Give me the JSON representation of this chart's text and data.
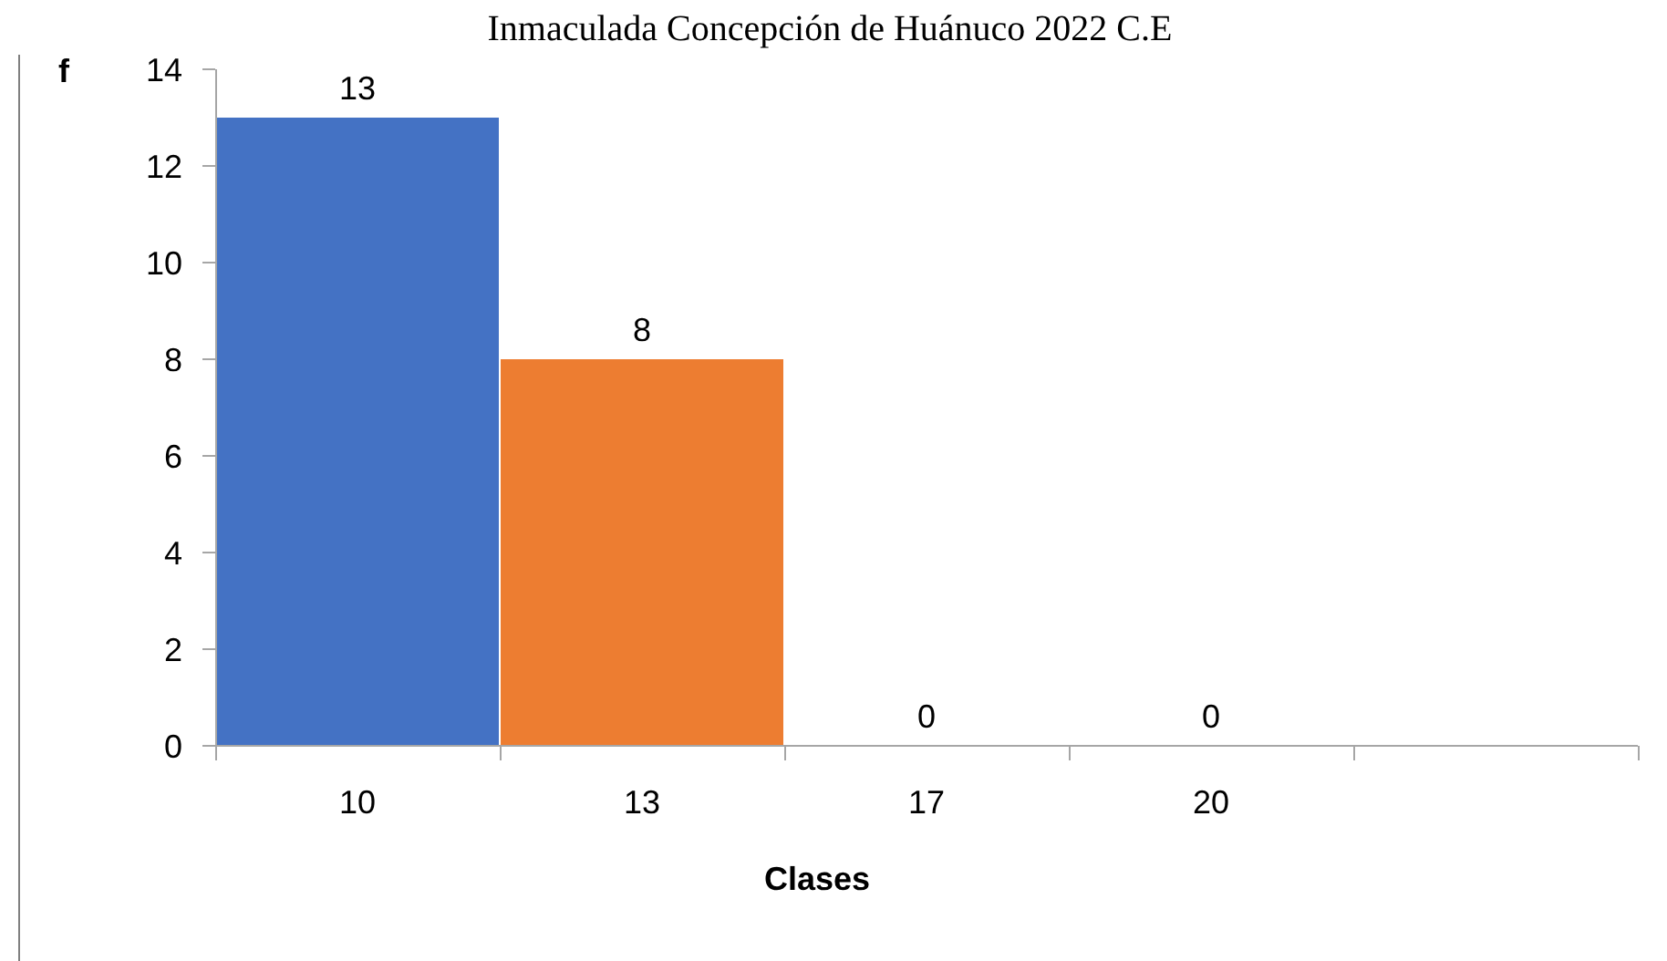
{
  "chart_data": {
    "type": "bar",
    "title": "Inmaculada Concepción de Huánuco 2022 C.E",
    "categories": [
      "10",
      "13",
      "17",
      "20",
      null
    ],
    "values": [
      13,
      8,
      0,
      0,
      null
    ],
    "colors": [
      "#4472c4",
      "#ed7d31",
      "#a5a5a5",
      "#ffc000",
      null
    ],
    "ylim": [
      0,
      14
    ],
    "yticks": [
      0,
      2,
      4,
      6,
      8,
      10,
      12,
      14
    ],
    "xlabel": "Clases",
    "ylabel": "f",
    "data_labels": true,
    "grid": false
  }
}
